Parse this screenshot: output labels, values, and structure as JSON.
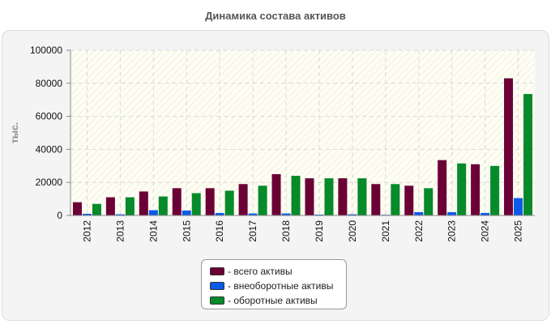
{
  "chart_data": {
    "type": "bar",
    "title": "Динамика состава активов",
    "ylabel": "тыс.",
    "ylim": [
      0,
      100000
    ],
    "yticks": [
      0,
      20000,
      40000,
      60000,
      80000,
      100000
    ],
    "ytick_labels": [
      "0",
      "20000",
      "40000",
      "60000",
      "80000",
      "100000"
    ],
    "grid": true,
    "legend_position": "bottom",
    "categories": [
      "2012",
      "2013",
      "2014",
      "2015",
      "2016",
      "2017",
      "2018",
      "2019",
      "2020",
      "2021",
      "2022",
      "2023",
      "2024",
      "2025"
    ],
    "series": [
      {
        "name": "- всего активы",
        "color": "#6b0036",
        "values": [
          8000,
          11000,
          14500,
          16500,
          16500,
          19000,
          25000,
          22500,
          22500,
          19000,
          18000,
          33500,
          31000,
          83000
        ]
      },
      {
        "name": "- внеоборотные активы",
        "color": "#0a5be8",
        "values": [
          1000,
          700,
          3200,
          3000,
          1500,
          1200,
          1200,
          500,
          700,
          400,
          2000,
          2000,
          1500,
          10500
        ]
      },
      {
        "name": "- оборотные активы",
        "color": "#078a2a",
        "values": [
          7000,
          11000,
          11500,
          13500,
          15000,
          18000,
          24000,
          22500,
          22500,
          19000,
          16500,
          31500,
          30000,
          73500
        ]
      }
    ]
  }
}
